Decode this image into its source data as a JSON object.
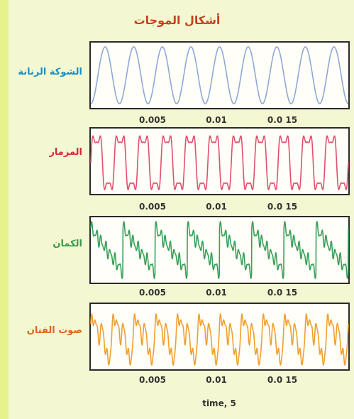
{
  "title": "أشكال الموجات",
  "xlabel": "time, 5",
  "colors": {
    "title": "#c8401e",
    "frame": "#2a2a2a"
  },
  "panels": [
    {
      "label": "الشوكة الرنانة",
      "color": "#8fa8d8",
      "label_color": "#1b8fc4"
    },
    {
      "label": "المزمار",
      "color": "#e0506e",
      "label_color": "#d0283a"
    },
    {
      "label": "الكمان",
      "color": "#3aa05a",
      "label_color": "#3a9a4a"
    },
    {
      "label": "صوت الفنان",
      "color": "#f0a030",
      "label_color": "#e0641a"
    }
  ],
  "x_tick_labels": [
    "0.005",
    "0.01",
    "0.0 15"
  ],
  "chart_data": [
    {
      "type": "line",
      "title": "",
      "series": [
        {
          "name": "الشوكة الرنانة",
          "waveform": "sine",
          "cycles_visible": 9
        }
      ],
      "xlabel": "time, 5",
      "ylabel": "",
      "xlim": [
        0,
        0.02
      ],
      "xticks": [
        0.005,
        0.01,
        0.015
      ],
      "xtick_labels": [
        "0.005",
        "0.01",
        "0.0 15"
      ],
      "grid": false
    },
    {
      "type": "line",
      "title": "",
      "series": [
        {
          "name": "المزمار",
          "waveform": "clarinet",
          "cycles_visible": 11
        }
      ],
      "xlabel": "time, 5",
      "ylabel": "",
      "xlim": [
        0,
        0.02
      ],
      "xticks": [
        0.005,
        0.01,
        0.015
      ],
      "xtick_labels": [
        "0.005",
        "0.01",
        "0.0 15"
      ],
      "grid": false
    },
    {
      "type": "line",
      "title": "",
      "series": [
        {
          "name": "الكمان",
          "waveform": "violin",
          "cycles_visible": 8
        }
      ],
      "xlabel": "time, 5",
      "ylabel": "",
      "xlim": [
        0,
        0.02
      ],
      "xticks": [
        0.005,
        0.01,
        0.015
      ],
      "xtick_labels": [
        "0.005",
        "0.01",
        "0.0 15"
      ],
      "grid": false
    },
    {
      "type": "line",
      "title": "",
      "series": [
        {
          "name": "صوت الفنان",
          "waveform": "voice",
          "cycles_visible": 12
        }
      ],
      "xlabel": "time, 5",
      "ylabel": "",
      "xlim": [
        0,
        0.02
      ],
      "xticks": [
        0.005,
        0.01,
        0.015
      ],
      "xtick_labels": [
        "0.005",
        "0.01",
        "0.0 15"
      ],
      "grid": false
    }
  ]
}
